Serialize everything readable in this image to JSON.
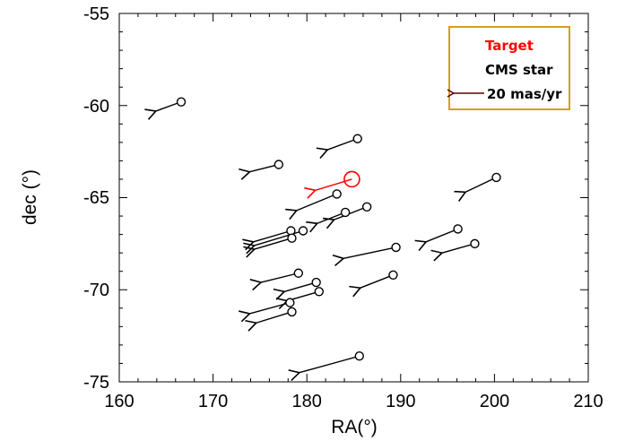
{
  "chart_data": {
    "type": "scatter",
    "title": "",
    "xlabel": "RA(°)",
    "ylabel": "dec (°)",
    "xlim": [
      160,
      210
    ],
    "ylim": [
      -75,
      -55
    ],
    "xticks": [
      "160",
      "170",
      "180",
      "190",
      "200",
      "210"
    ],
    "yticks": [
      "-55",
      "-60",
      "-65",
      "-70",
      "-75"
    ],
    "grid": false,
    "legend_position": "top-right",
    "legend": {
      "target_label": "Target",
      "cms_label": "CMS star",
      "scale_label": "20 mas/yr"
    },
    "colors": {
      "target": "#ff0000",
      "cms": "#000000",
      "legend_border": "#d4a017",
      "scale_arrow": "#5a0000"
    },
    "target": [
      {
        "ra": 184.8,
        "dec": -64.0,
        "ra_end": 180.9,
        "dec_end": -64.6
      }
    ],
    "cms_stars": [
      {
        "ra": 166.6,
        "dec": -59.8,
        "ra_end": 163.9,
        "dec_end": -60.3
      },
      {
        "ra": 185.4,
        "dec": -61.8,
        "ra_end": 182.2,
        "dec_end": -62.4
      },
      {
        "ra": 177.0,
        "dec": -63.2,
        "ra_end": 173.9,
        "dec_end": -63.6
      },
      {
        "ra": 200.2,
        "dec": -63.9,
        "ra_end": 196.9,
        "dec_end": -64.7
      },
      {
        "ra": 183.2,
        "dec": -64.8,
        "ra_end": 178.9,
        "dec_end": -65.7
      },
      {
        "ra": 186.4,
        "dec": -65.5,
        "ra_end": 182.9,
        "dec_end": -66.2
      },
      {
        "ra": 184.1,
        "dec": -65.8,
        "ra_end": 181.1,
        "dec_end": -66.4
      },
      {
        "ra": 179.6,
        "dec": -66.8,
        "ra_end": 174.4,
        "dec_end": -67.6
      },
      {
        "ra": 178.3,
        "dec": -66.8,
        "ra_end": 174.3,
        "dec_end": -67.4
      },
      {
        "ra": 178.4,
        "dec": -67.2,
        "ra_end": 174.4,
        "dec_end": -67.8
      },
      {
        "ra": 196.1,
        "dec": -66.7,
        "ra_end": 192.7,
        "dec_end": -67.4
      },
      {
        "ra": 197.9,
        "dec": -67.5,
        "ra_end": 194.4,
        "dec_end": -68.0
      },
      {
        "ra": 189.5,
        "dec": -67.7,
        "ra_end": 183.9,
        "dec_end": -68.3
      },
      {
        "ra": 179.1,
        "dec": -69.1,
        "ra_end": 175.1,
        "dec_end": -69.6
      },
      {
        "ra": 189.2,
        "dec": -69.2,
        "ra_end": 185.7,
        "dec_end": -69.9
      },
      {
        "ra": 181.0,
        "dec": -69.6,
        "ra_end": 177.6,
        "dec_end": -70.1
      },
      {
        "ra": 181.3,
        "dec": -70.1,
        "ra_end": 177.9,
        "dec_end": -70.6
      },
      {
        "ra": 178.2,
        "dec": -70.7,
        "ra_end": 173.9,
        "dec_end": -71.3
      },
      {
        "ra": 178.4,
        "dec": -71.2,
        "ra_end": 174.6,
        "dec_end": -71.8
      },
      {
        "ra": 185.6,
        "dec": -73.6,
        "ra_end": 179.2,
        "dec_end": -74.5
      }
    ]
  }
}
